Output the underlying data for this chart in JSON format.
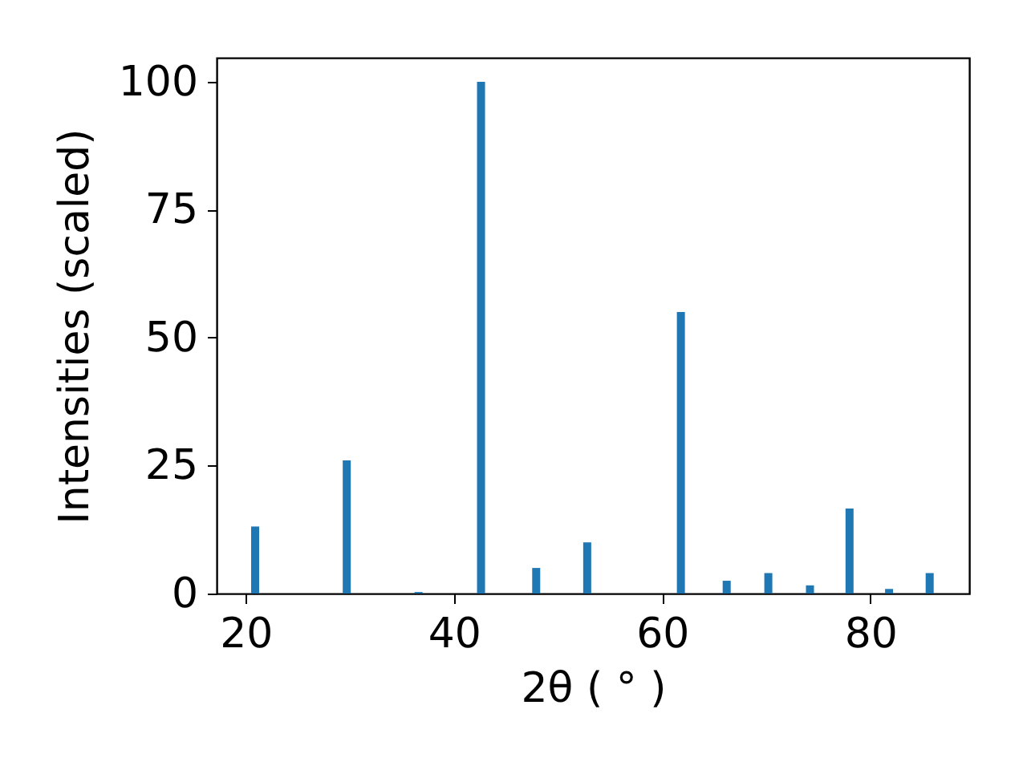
{
  "chart_data": {
    "type": "bar",
    "xlabel": "2θ ( ° )",
    "ylabel": "Intensities (scaled)",
    "x": [
      20.9,
      29.7,
      36.6,
      42.6,
      47.9,
      52.8,
      61.8,
      66.2,
      70.2,
      74.2,
      78.0,
      81.8,
      85.7
    ],
    "values": [
      13.1,
      26,
      0.3,
      100,
      5,
      10,
      55,
      2.5,
      4,
      1.6,
      16.6,
      0.9,
      4
    ],
    "color": "#1f77b4",
    "xlim": [
      17.2,
      89.5
    ],
    "xticks": [
      20,
      40,
      60,
      80
    ],
    "ylim": [
      0,
      104.7
    ],
    "yticks": [
      0,
      25,
      50,
      75,
      100
    ],
    "grid": false
  }
}
